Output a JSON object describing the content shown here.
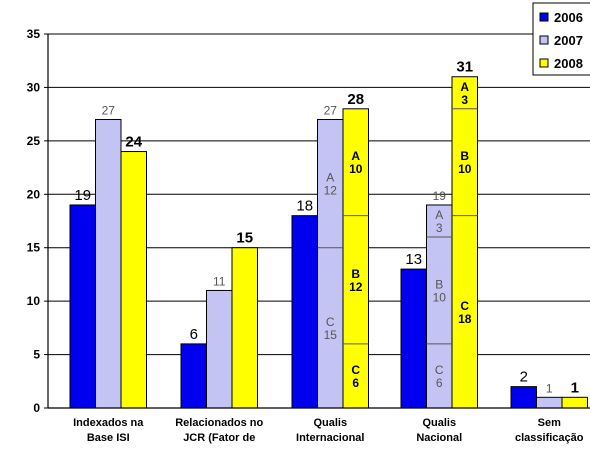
{
  "chart_data": {
    "type": "bar",
    "categories": [
      [
        "Indexados na",
        "Base ISI"
      ],
      [
        "Relacionados no",
        "JCR (Fator de"
      ],
      [
        "Qualis",
        "Internacional"
      ],
      [
        "Qualis",
        "Nacional"
      ],
      [
        "Sem",
        "classificação"
      ]
    ],
    "yticks": [
      "0",
      "5",
      "10",
      "15",
      "20",
      "25",
      "30",
      "35"
    ],
    "ylim": [
      0,
      35
    ],
    "grid": true,
    "legend_position": "top-right",
    "series": [
      {
        "name": "2006",
        "color": "#0000ee",
        "values": [
          19,
          6,
          18,
          13,
          2
        ],
        "labels": [
          "19",
          "6",
          "18",
          "13",
          "2"
        ]
      },
      {
        "name": "2007",
        "color": "#c4c4f4",
        "values": [
          27,
          11,
          27,
          19,
          1
        ],
        "labels": [
          "27",
          "11",
          "27",
          "19",
          "1"
        ]
      },
      {
        "name": "2008",
        "color": "#ffff00",
        "values": [
          24,
          15,
          28,
          31,
          1
        ],
        "labels": [
          "24",
          "15",
          "28",
          "31",
          "1"
        ]
      }
    ],
    "segments": [
      {
        "category": 2,
        "series": 1,
        "parts": [
          {
            "label": "C",
            "value": 15
          },
          {
            "label": "A",
            "value": 12
          }
        ]
      },
      {
        "category": 2,
        "series": 2,
        "parts": [
          {
            "label": "C",
            "value": 6
          },
          {
            "label": "B",
            "value": 12
          },
          {
            "label": "A",
            "value": 10
          }
        ]
      },
      {
        "category": 3,
        "series": 1,
        "parts": [
          {
            "label": "C",
            "value": 6
          },
          {
            "label": "B",
            "value": 10
          },
          {
            "label": "A",
            "value": 3
          }
        ]
      },
      {
        "category": 3,
        "series": 2,
        "parts": [
          {
            "label": "C",
            "value": 18
          },
          {
            "label": "B",
            "value": 10
          },
          {
            "label": "A",
            "value": 3
          }
        ]
      }
    ]
  }
}
